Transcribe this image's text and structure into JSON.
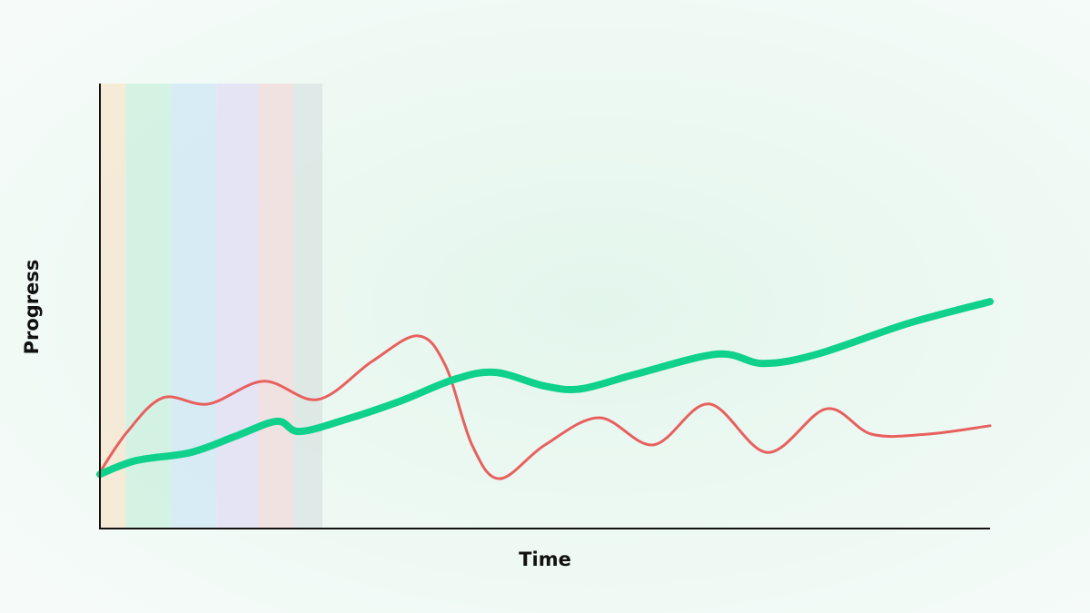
{
  "chart_data": {
    "type": "line",
    "x_label": "Time",
    "y_label": "Progress",
    "xlim": [
      0,
      100
    ],
    "ylim": [
      0,
      100
    ],
    "bands": [
      {
        "start": 0,
        "end": 2.9,
        "color": "#f6e7d1"
      },
      {
        "start": 2.9,
        "end": 8.0,
        "color": "#cff1df"
      },
      {
        "start": 8.0,
        "end": 13.1,
        "color": "#d2e9f3"
      },
      {
        "start": 13.1,
        "end": 17.8,
        "color": "#e3e0f5"
      },
      {
        "start": 17.8,
        "end": 21.8,
        "color": "#f1dede"
      },
      {
        "start": 21.8,
        "end": 25.0,
        "color": "#dce6e4"
      }
    ],
    "series": [
      {
        "color": "#e8605e",
        "width": 3,
        "x": [
          0,
          3.1,
          7.1,
          12.2,
          18.4,
          24.5,
          30.6,
          35.7,
          38.8,
          41.8,
          44.9,
          50.0,
          56.1,
          62.2,
          68.4,
          75.0,
          81.6,
          86.7,
          92.9,
          100
        ],
        "values": [
          12.7,
          21.8,
          29.4,
          28.0,
          33.1,
          29.0,
          37.6,
          43.3,
          36.7,
          18.8,
          11.2,
          18.8,
          24.9,
          18.8,
          28.0,
          17.1,
          26.9,
          21.2,
          21.2,
          23.1
        ]
      },
      {
        "color": "#0fd18c",
        "width": 8,
        "x": [
          0,
          4.1,
          10.2,
          15.3,
          19.9,
          22.4,
          27.6,
          33.7,
          39.8,
          44.4,
          50.0,
          54.1,
          60.2,
          69.4,
          74.5,
          80.6,
          90.8,
          100
        ],
        "values": [
          12.2,
          15.3,
          17.1,
          20.8,
          24.1,
          21.8,
          24.5,
          28.6,
          33.5,
          35.1,
          32.0,
          31.4,
          34.7,
          39.2,
          37.1,
          39.2,
          46.1,
          51.0
        ]
      }
    ]
  }
}
